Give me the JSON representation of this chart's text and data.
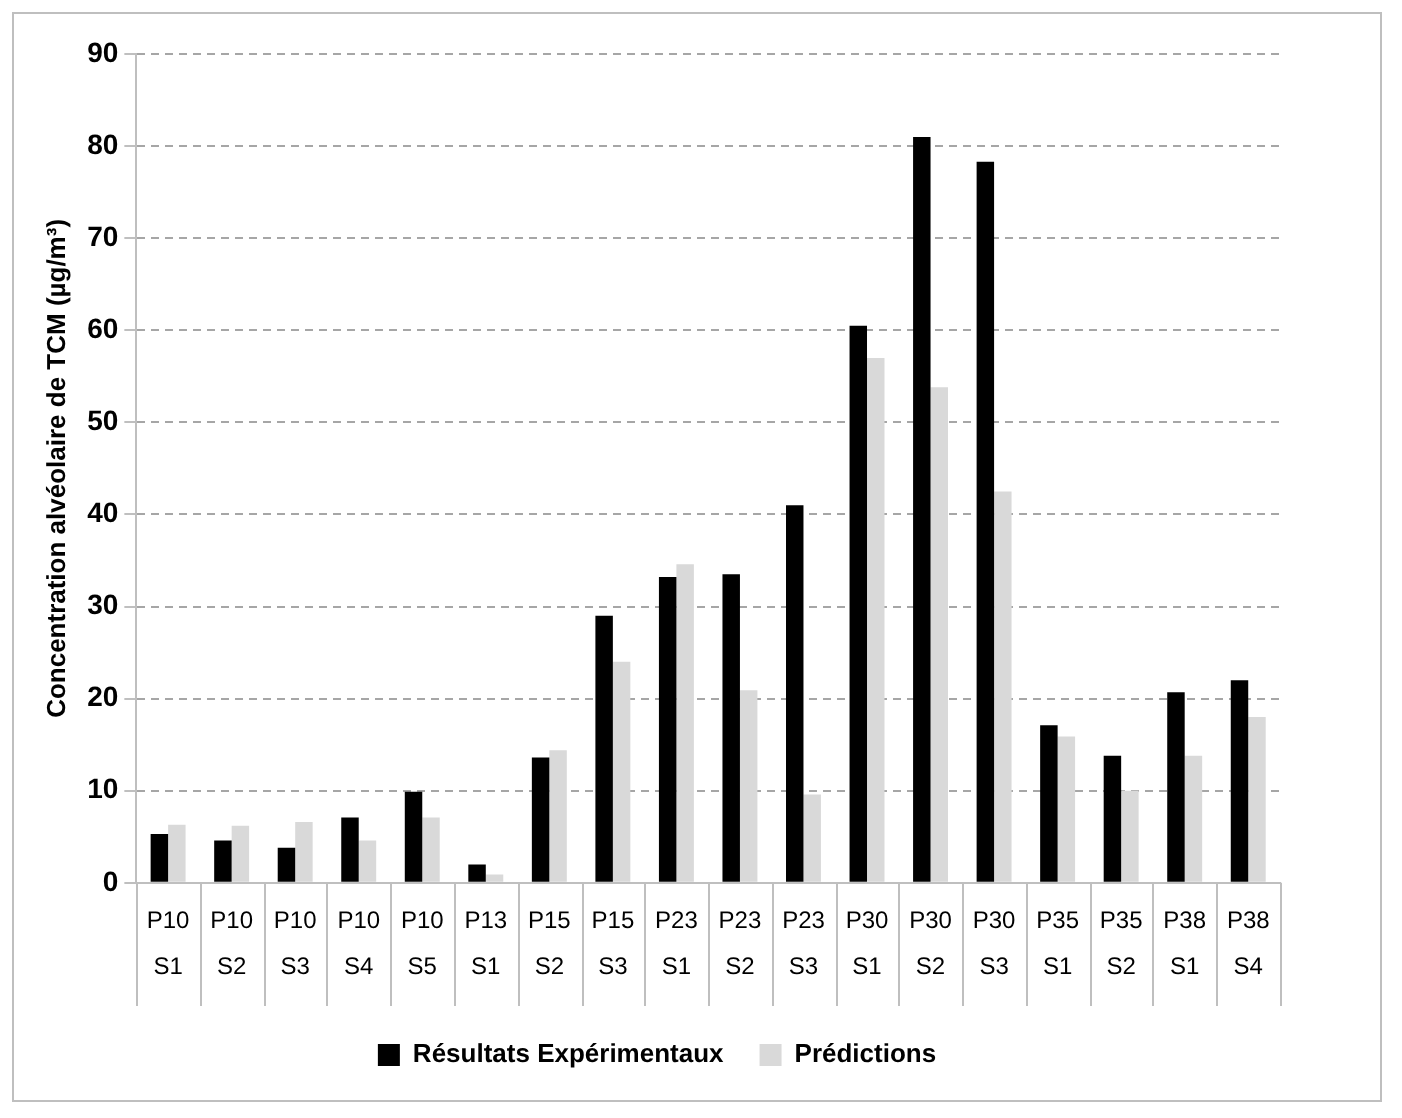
{
  "chart_data": {
    "type": "bar",
    "ylabel": "Concentration alvéolaire de TCM (µg/m³)",
    "categories": [
      "P10 S1",
      "P10 S2",
      "P10 S3",
      "P10 S4",
      "P10 S5",
      "P13 S1",
      "P15 S2",
      "P15 S3",
      "P23 S1",
      "P23 S2",
      "P23 S3",
      "P30 S1",
      "P30 S2",
      "P30 S3",
      "P35 S1",
      "P35 S2",
      "P38 S1",
      "P38 S4"
    ],
    "series": [
      {
        "name": "Résultats Expérimentaux",
        "color": "#000000",
        "values": [
          5.3,
          4.6,
          3.8,
          7.1,
          9.9,
          2,
          13.6,
          29,
          33.2,
          33.5,
          41,
          60.5,
          81,
          78.3,
          17.1,
          13.8,
          20.7,
          22
        ]
      },
      {
        "name": "Prédictions",
        "color": "#d9d9d9",
        "values": [
          6.3,
          6.2,
          6.6,
          4.6,
          7.1,
          0.9,
          14.4,
          24,
          34.6,
          20.9,
          9.6,
          57,
          53.8,
          42.5,
          15.9,
          10,
          13.8,
          18
        ]
      }
    ],
    "ylim": [
      0,
      90
    ],
    "yticks": [
      0,
      10,
      20,
      30,
      40,
      50,
      60,
      70,
      80,
      90
    ],
    "grid": "y",
    "legend": "bottom"
  }
}
